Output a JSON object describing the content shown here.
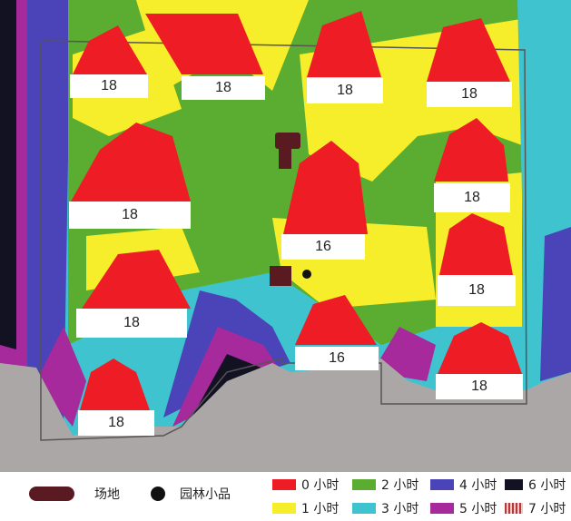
{
  "buildings": [
    {
      "id": "b1",
      "label": "18"
    },
    {
      "id": "b2",
      "label": "18"
    },
    {
      "id": "b3",
      "label": "18"
    },
    {
      "id": "b4",
      "label": "18"
    },
    {
      "id": "b5",
      "label": "18"
    },
    {
      "id": "b6",
      "label": "16"
    },
    {
      "id": "b7",
      "label": "18"
    },
    {
      "id": "b8",
      "label": "18"
    },
    {
      "id": "b9",
      "label": "18"
    },
    {
      "id": "b10",
      "label": "16"
    },
    {
      "id": "b11",
      "label": "18"
    },
    {
      "id": "b12",
      "label": "18"
    }
  ],
  "legend": {
    "site": {
      "label": "场地",
      "color": "#5a1a22"
    },
    "garden": {
      "label": "园林小品",
      "color": "#111111"
    },
    "hours": [
      {
        "label": "0 小时",
        "color": "#ee1c24"
      },
      {
        "label": "1 小时",
        "color": "#f6ee2a"
      },
      {
        "label": "2 小时",
        "color": "#5bad32"
      },
      {
        "label": "3 小时",
        "color": "#3fc4cf"
      },
      {
        "label": "4 小时",
        "color": "#4a44b8"
      },
      {
        "label": "5 小时",
        "color": "#a62a9c"
      },
      {
        "label": "6 小时",
        "color": "#121223"
      },
      {
        "label": "7 小时",
        "color": "#b33a3a"
      }
    ]
  }
}
